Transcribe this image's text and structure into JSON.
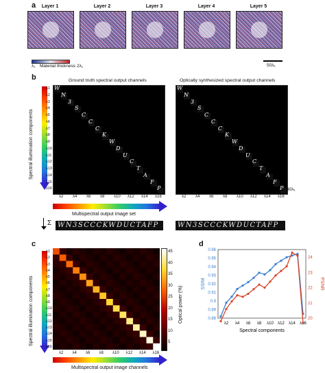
{
  "panels": {
    "a": "a",
    "b": "b",
    "c": "c",
    "d": "d"
  },
  "layers": [
    "Layer 1",
    "Layer 2",
    "Layer 3",
    "Layer 4",
    "Layer 5"
  ],
  "thickness": {
    "min": "λ₁",
    "label": "Material thickness",
    "max": "2λ₁"
  },
  "scalebar_a": "50λ₁",
  "b": {
    "title_left": "Ground truth spectral output channels",
    "title_right": "Optically synthesized spectral output channels",
    "row_labels": [
      "λ1",
      "λ2",
      "λ3",
      "λ4",
      "λ5",
      "λ6",
      "λ7",
      "λ8",
      "λ9",
      "λ10",
      "λ11",
      "λ12",
      "λ13",
      "λ14",
      "λ15",
      "λ16"
    ],
    "col_ticks": [
      "λ2",
      "λ4",
      "λ6",
      "λ8",
      "λ10",
      "λ12",
      "λ14",
      "λ16"
    ],
    "letters": [
      "W",
      "N",
      "3",
      "S",
      "C",
      "C",
      "C",
      "K",
      "W",
      "D",
      "U",
      "C",
      "T",
      "A",
      "F",
      "P"
    ],
    "y_axis_label": "Spectral illumination components",
    "x_axis_label": "Multispectral output image set",
    "scalebar": "40λ₁",
    "sum_symbol": "Σ",
    "strip_text": "WN3SCCCKWDUCTAFP"
  },
  "c": {
    "y_axis_label": "Spectral illumination components",
    "x_axis_label": "Multispectral output image channels",
    "colorbar_ticks": [
      "45",
      "40",
      "35",
      "30",
      "25",
      "20",
      "15",
      "10",
      "5"
    ],
    "colorbar_label": "Optical power (%)"
  },
  "d": {
    "xlabel": "Spectral components",
    "ylabel_left": "SSIM",
    "ylabel_right": "PSNR",
    "yticks_left": [
      "0.96",
      "0.95",
      "0.94",
      "0.93",
      "0.92",
      "0.91",
      "0.9",
      "0.89",
      "0.88"
    ],
    "yticks_right": [
      "24",
      "23",
      "22",
      "21",
      "20"
    ],
    "xticks": [
      "λ2",
      "λ4",
      "λ6",
      "λ8",
      "λ10",
      "λ12",
      "λ14",
      "λ16"
    ]
  },
  "chart_data": {
    "type": "line",
    "x": [
      "λ1",
      "λ2",
      "λ3",
      "λ4",
      "λ5",
      "λ6",
      "λ7",
      "λ8",
      "λ9",
      "λ10",
      "λ11",
      "λ12",
      "λ13",
      "λ14",
      "λ15",
      "λ16"
    ],
    "series": [
      {
        "name": "SSIM",
        "axis": "left",
        "color": "#3a7fd0",
        "values": [
          0.882,
          0.898,
          0.905,
          0.914,
          0.918,
          0.922,
          0.927,
          0.933,
          0.931,
          0.936,
          0.943,
          0.947,
          0.951,
          0.953,
          0.955,
          0.885
        ]
      },
      {
        "name": "PSNR",
        "axis": "right",
        "color": "#d9452a",
        "values": [
          19.8,
          20.6,
          21.1,
          21.5,
          21.4,
          21.6,
          21.9,
          22.2,
          22.0,
          22.4,
          22.8,
          23.1,
          23.4,
          24.3,
          24.1,
          19.7
        ]
      }
    ],
    "xlabel": "Spectral components",
    "ylim_left": [
      0.88,
      0.96
    ],
    "ylim_right": [
      20,
      24.5
    ]
  }
}
